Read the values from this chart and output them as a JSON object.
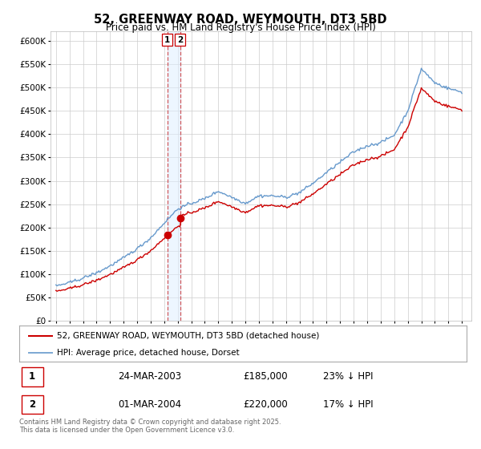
{
  "title": "52, GREENWAY ROAD, WEYMOUTH, DT3 5BD",
  "subtitle": "Price paid vs. HM Land Registry's House Price Index (HPI)",
  "legend_line1": "52, GREENWAY ROAD, WEYMOUTH, DT3 5BD (detached house)",
  "legend_line2": "HPI: Average price, detached house, Dorset",
  "transaction1_label": "1",
  "transaction1_date": "24-MAR-2003",
  "transaction1_price": "£185,000",
  "transaction1_hpi": "23% ↓ HPI",
  "transaction2_label": "2",
  "transaction2_date": "01-MAR-2004",
  "transaction2_price": "£220,000",
  "transaction2_hpi": "17% ↓ HPI",
  "footer": "Contains HM Land Registry data © Crown copyright and database right 2025.\nThis data is licensed under the Open Government Licence v3.0.",
  "ylim": [
    0,
    620000
  ],
  "color_red": "#cc0000",
  "color_blue": "#6699cc",
  "color_blue_fill": "#ddeeff",
  "vline_color": "#cc3333",
  "background_color": "#ffffff",
  "grid_color": "#cccccc",
  "marker1_x": 2003.23,
  "marker1_y": 185000,
  "marker2_x": 2004.17,
  "marker2_y": 220000,
  "xlim_left": 1994.6,
  "xlim_right": 2025.7
}
